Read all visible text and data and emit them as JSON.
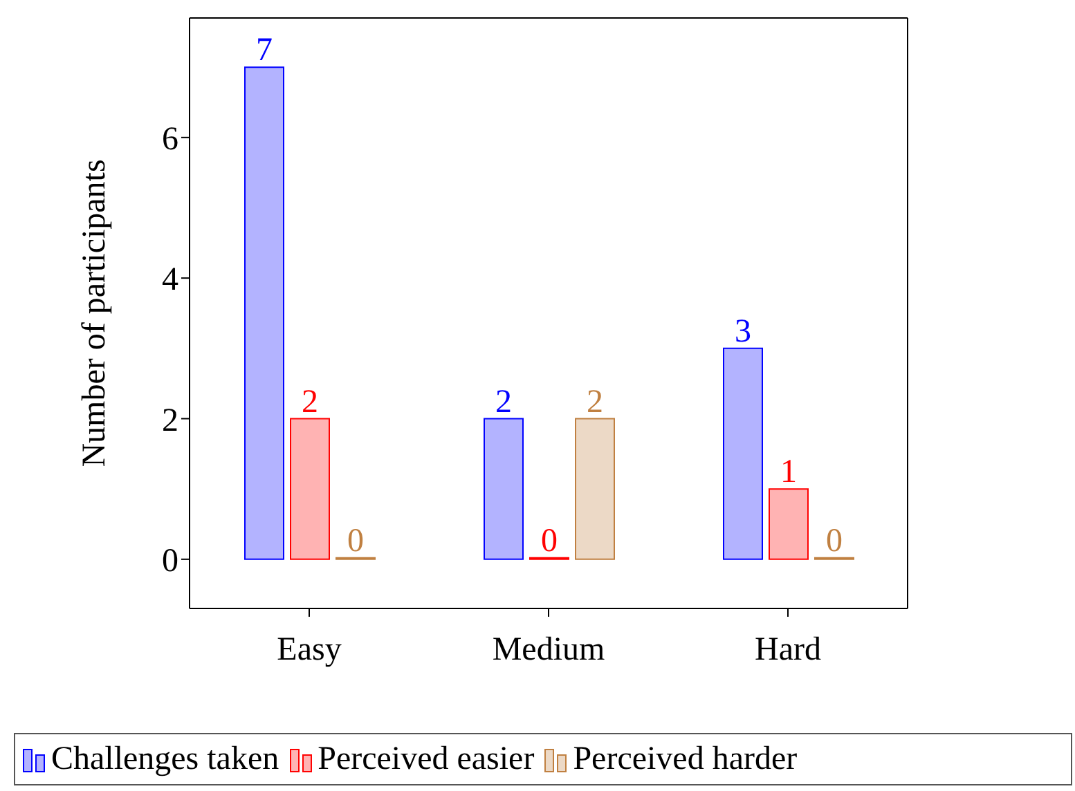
{
  "chart_data": {
    "type": "bar",
    "ylabel": "Number of participants",
    "categories": [
      "Easy",
      "Medium",
      "Hard"
    ],
    "series": [
      {
        "name": "Challenges taken",
        "color": "#b3b3ff",
        "values": [
          7,
          2,
          3
        ]
      },
      {
        "name": "Perceived easier",
        "color": "#ffb3b3",
        "values": [
          2,
          0,
          1
        ]
      },
      {
        "name": "Perceived harder",
        "color": "#ecd9c6",
        "values": [
          0,
          2,
          0
        ]
      }
    ],
    "ylim": [
      -0.7,
      7.7
    ],
    "yticks": [
      0,
      2,
      4,
      6
    ],
    "data_labels": true,
    "legend": "bottom",
    "grid": false
  }
}
